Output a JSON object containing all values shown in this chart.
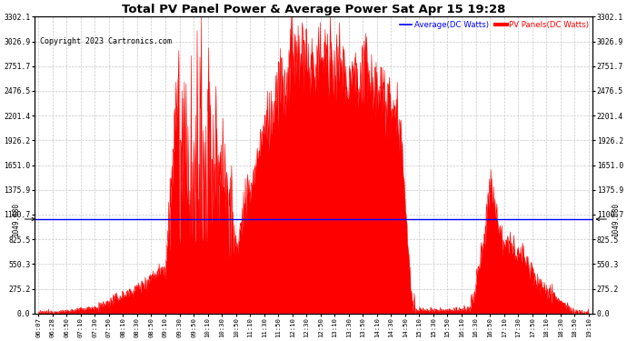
{
  "title": "Total PV Panel Power & Average Power Sat Apr 15 19:28",
  "copyright": "Copyright 2023 Cartronics.com",
  "legend_avg": "Average(DC Watts)",
  "legend_pv": "PV Panels(DC Watts)",
  "avg_value": 1049.68,
  "avg_label": "1049.680",
  "y_ticks": [
    0.0,
    275.2,
    550.3,
    825.5,
    1100.7,
    1375.9,
    1651.0,
    1926.2,
    2201.4,
    2476.5,
    2751.7,
    3026.9,
    3302.1
  ],
  "x_ticks": [
    "06:07",
    "06:28",
    "06:50",
    "07:10",
    "07:30",
    "07:50",
    "08:10",
    "08:30",
    "08:50",
    "09:10",
    "09:30",
    "09:50",
    "10:10",
    "10:30",
    "10:50",
    "11:10",
    "11:30",
    "11:50",
    "12:10",
    "12:30",
    "12:50",
    "13:10",
    "13:30",
    "13:50",
    "14:10",
    "14:30",
    "14:50",
    "15:10",
    "15:30",
    "15:50",
    "16:10",
    "16:30",
    "16:50",
    "17:10",
    "17:30",
    "17:50",
    "18:10",
    "18:30",
    "18:50",
    "19:10"
  ],
  "bg_color": "#ffffff",
  "fill_color": "#ff0000",
  "avg_line_color": "#0000ff",
  "grid_color": "#c8c8c8",
  "title_color": "#000000",
  "copyright_color": "#000000",
  "legend_avg_color": "#0000ff",
  "legend_pv_color": "#ff0000",
  "ymax": 3302.1
}
